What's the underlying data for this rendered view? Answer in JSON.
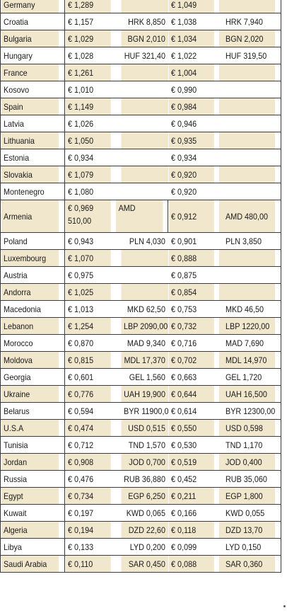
{
  "rows": [
    {
      "country": "Germany",
      "price1": "€ 1,289",
      "local1": "",
      "price2": "€ 1,049",
      "local2": ""
    },
    {
      "country": "Croatia",
      "price1": "€ 1,157",
      "local1": "HRK 8,850",
      "price2": "€ 1,038",
      "local2": "HRK 7,940"
    },
    {
      "country": "Bulgaria",
      "price1": "€ 1,029",
      "local1": "BGN 2,010",
      "price2": "€ 1,034",
      "local2": "BGN 2,020"
    },
    {
      "country": "Hungary",
      "price1": "€ 1,028",
      "local1": "HUF 321,40",
      "price2": "€ 1,022",
      "local2": "HUF 319,50"
    },
    {
      "country": "France",
      "price1": "€ 1,261",
      "local1": "",
      "price2": "€ 1,004",
      "local2": ""
    },
    {
      "country": "Kosovo",
      "price1": "€ 1,010",
      "local1": "",
      "price2": "€ 0,990",
      "local2": ""
    },
    {
      "country": "Spain",
      "price1": "€ 1,149",
      "local1": "",
      "price2": "€ 0,984",
      "local2": ""
    },
    {
      "country": "Latvia",
      "price1": "€ 1,026",
      "local1": "",
      "price2": "€ 0,946",
      "local2": ""
    },
    {
      "country": "Lithuania",
      "price1": "€ 1,050",
      "local1": "",
      "price2": "€ 0,935",
      "local2": ""
    },
    {
      "country": "Estonia",
      "price1": "€ 0,934",
      "local1": "",
      "price2": "€ 0,934",
      "local2": ""
    },
    {
      "country": "Slovakia",
      "price1": "€ 1,079",
      "local1": "",
      "price2": "€ 0,920",
      "local2": ""
    },
    {
      "country": "Montenegro",
      "price1": "€ 1,080",
      "local1": "",
      "price2": "€ 0,920",
      "local2": ""
    },
    {
      "country": "Armenia",
      "price1": "€ 0,969",
      "local1": "AMD",
      "local1_cont": "510,00",
      "price2": "€ 0,912",
      "local2": "AMD 480,00"
    },
    {
      "country": "Poland",
      "price1": "€ 0,943",
      "local1": "PLN 4,030",
      "price2": "€ 0,901",
      "local2": "PLN 3,850"
    },
    {
      "country": "Luxembourg",
      "price1": "€ 1,070",
      "local1": "",
      "price2": "€ 0,888",
      "local2": ""
    },
    {
      "country": "Austria",
      "price1": "€ 0,975",
      "local1": "",
      "price2": "€ 0,875",
      "local2": ""
    },
    {
      "country": "Andorra",
      "price1": "€ 1,025",
      "local1": "",
      "price2": "€ 0,854",
      "local2": ""
    },
    {
      "country": "Macedonia",
      "price1": "€ 1,013",
      "local1": "MKD 62,50",
      "price2": "€ 0,753",
      "local2": "MKD 46,50"
    },
    {
      "country": "Lebanon",
      "price1": "€ 1,254",
      "local1": "LBP 2090,00",
      "price2": "€ 0,732",
      "local2": "LBP 1220,00"
    },
    {
      "country": "Morocco",
      "price1": "€ 0,870",
      "local1": "MAD 9,340",
      "price2": "€ 0,716",
      "local2": "MAD 7,690"
    },
    {
      "country": "Moldova",
      "price1": "€ 0,815",
      "local1": "MDL 17,370",
      "price2": "€ 0,702",
      "local2": "MDL 14,970"
    },
    {
      "country": "Georgia",
      "price1": "€ 0,601",
      "local1": "GEL 1,560",
      "price2": "€ 0,663",
      "local2": "GEL 1,720"
    },
    {
      "country": "Ukraine",
      "price1": "€ 0,776",
      "local1": "UAH 19,900",
      "price2": "€ 0,644",
      "local2": "UAH 16,500"
    },
    {
      "country": "Belarus",
      "price1": "€ 0,594",
      "local1": "BYR 11900,00",
      "price2": "€ 0,614",
      "local2": "BYR 12300,00"
    },
    {
      "country": "U.S.A",
      "price1": "€ 0,474",
      "local1": "USD 0,515",
      "price2": "€ 0,550",
      "local2": "USD 0,598"
    },
    {
      "country": "Tunisia",
      "price1": "€ 0,712",
      "local1": "TND 1,570",
      "price2": "€ 0,530",
      "local2": "TND 1,170"
    },
    {
      "country": "Jordan",
      "price1": "€ 0,908",
      "local1": "JOD 0,700",
      "price2": "€ 0,519",
      "local2": "JOD 0,400"
    },
    {
      "country": "Russia",
      "price1": "€ 0,476",
      "local1": "RUB 36,880",
      "price2": "€ 0,452",
      "local2": "RUB 35,060"
    },
    {
      "country": "Egypt",
      "price1": "€ 0,734",
      "local1": "EGP 6,250",
      "price2": "€ 0,211",
      "local2": "EGP 1,800"
    },
    {
      "country": "Kuwait",
      "price1": "€ 0,197",
      "local1": "KWD 0,065",
      "price2": "€ 0,166",
      "local2": "KWD 0,055"
    },
    {
      "country": "Algeria",
      "price1": "€ 0,194",
      "local1": "DZD 22,60",
      "price2": "€ 0,118",
      "local2": "DZD 13,70"
    },
    {
      "country": "Libya",
      "price1": "€ 0,133",
      "local1": "LYD 0,200",
      "price2": "€ 0,099",
      "local2": "LYD 0,150"
    },
    {
      "country": "Saudi Arabia",
      "price1": "€ 0,110",
      "local1": "SAR 0,450",
      "price2": "€ 0,088",
      "local2": "SAR 0,360"
    }
  ],
  "colors": {
    "row_stripe": "#f0e7cc",
    "row_plain": "#ffffff",
    "grid_line": "#3a3a3a"
  }
}
